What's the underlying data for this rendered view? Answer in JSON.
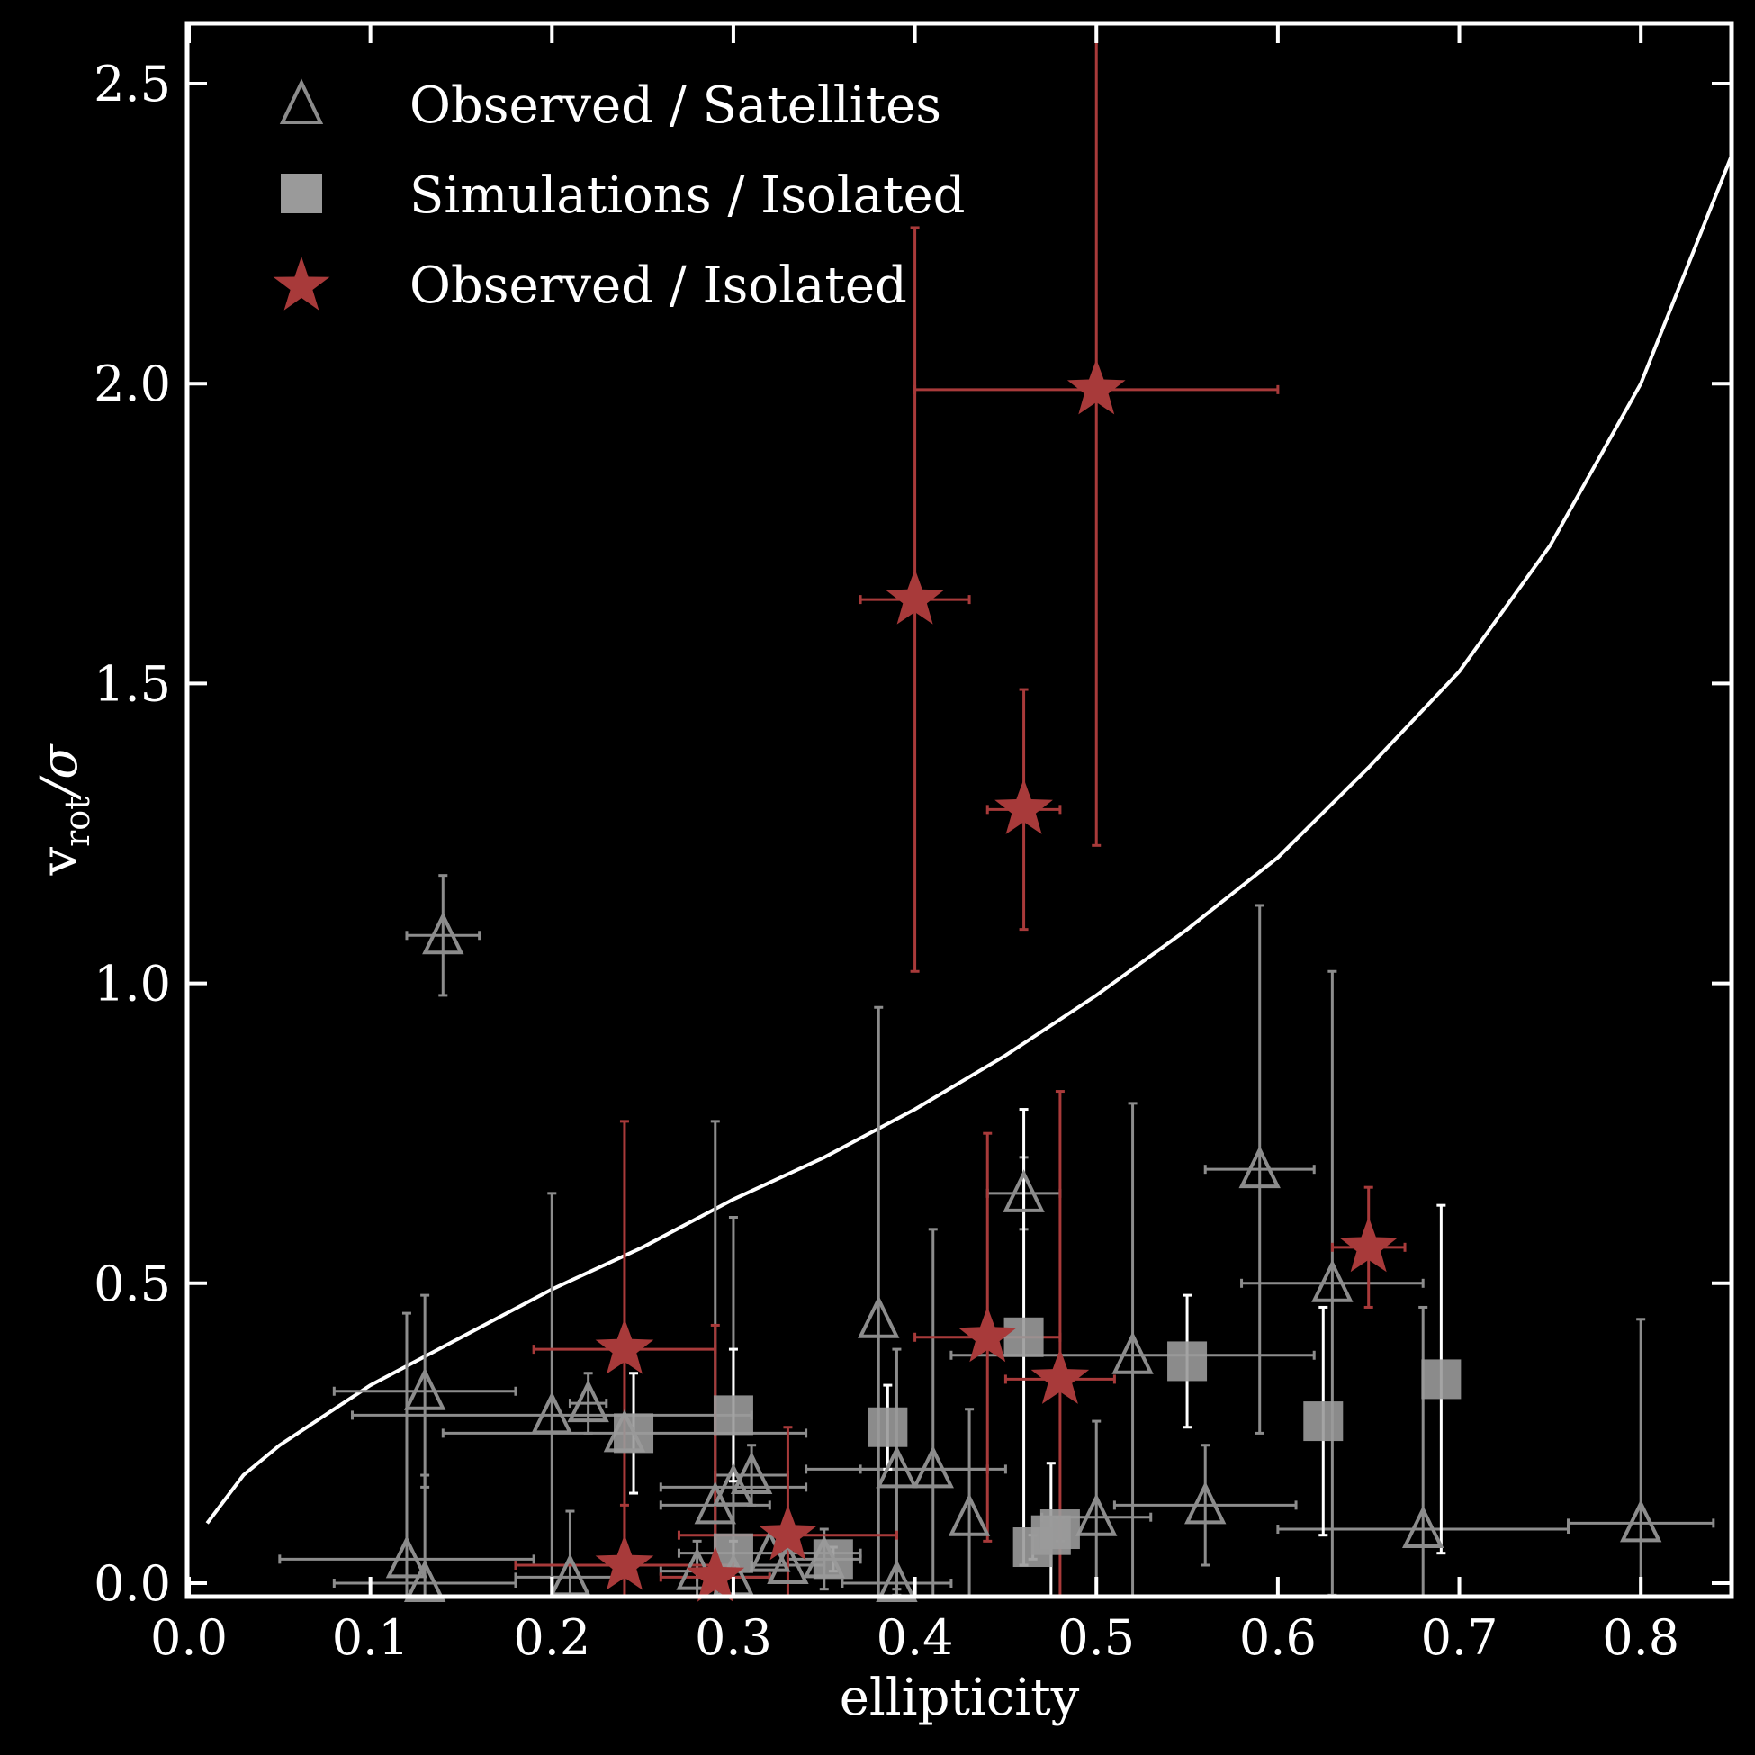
{
  "chart_data": {
    "type": "scatter",
    "xlabel": "ellipticity",
    "ylabel": "v_rot/σ",
    "ylabel_main": "v",
    "ylabel_sub": "rot",
    "ylabel_tail": "/σ",
    "xlim": [
      0.0,
      0.85
    ],
    "ylim": [
      -0.03,
      2.6
    ],
    "xticks": [
      "0.0",
      "0.1",
      "0.2",
      "0.3",
      "0.4",
      "0.5",
      "0.6",
      "0.7",
      "0.8"
    ],
    "yticks": [
      "0.0",
      "0.5",
      "1.0",
      "1.5",
      "2.0",
      "2.5"
    ],
    "grid": false,
    "legend_position": "top-left",
    "colors": {
      "background": "#000000",
      "axes": "#ffffff",
      "satellites": "#8c8c8c",
      "simulations": "#9a9a9a",
      "isolated": "#a83a3a",
      "curve": "#ffffff"
    },
    "legend": [
      {
        "label": "Observed / Satellites",
        "marker": "triangle"
      },
      {
        "label": "Simulations / Isolated",
        "marker": "square"
      },
      {
        "label": "Observed / Isolated",
        "marker": "star"
      }
    ],
    "curve": {
      "name": "",
      "x": [
        0.01,
        0.03,
        0.05,
        0.08,
        0.1,
        0.15,
        0.2,
        0.25,
        0.3,
        0.35,
        0.4,
        0.45,
        0.5,
        0.55,
        0.6,
        0.65,
        0.7,
        0.75,
        0.8,
        0.85
      ],
      "y": [
        0.1,
        0.18,
        0.23,
        0.29,
        0.33,
        0.41,
        0.49,
        0.56,
        0.64,
        0.71,
        0.79,
        0.88,
        0.98,
        1.09,
        1.21,
        1.36,
        1.52,
        1.73,
        2.0,
        2.38
      ]
    },
    "series": [
      {
        "name": "Observed / Satellites",
        "marker": "triangle",
        "points": [
          {
            "x": 0.14,
            "y": 1.08,
            "xerr": 0.02,
            "yerr": 0.1
          },
          {
            "x": 0.12,
            "y": 0.04,
            "xerr": 0.07,
            "yerr": 0.41
          },
          {
            "x": 0.13,
            "y": 0.0,
            "xerr": 0.05,
            "yerr": 0.18
          },
          {
            "x": 0.13,
            "y": 0.32,
            "xerr": 0.05,
            "yerr": 0.16
          },
          {
            "x": 0.2,
            "y": 0.28,
            "xerr": 0.11,
            "yerr": 0.37
          },
          {
            "x": 0.21,
            "y": 0.01,
            "xerr": 0.03,
            "yerr": 0.11
          },
          {
            "x": 0.22,
            "y": 0.3,
            "xerr": 0.01,
            "yerr": 0.05
          },
          {
            "x": 0.24,
            "y": 0.25,
            "xerr": 0.1,
            "yerr": 0.0
          },
          {
            "x": 0.28,
            "y": 0.02,
            "xerr": 0.02,
            "yerr": 0.05
          },
          {
            "x": 0.29,
            "y": 0.13,
            "xerr": 0.03,
            "yerr": 0.64
          },
          {
            "x": 0.3,
            "y": 0.16,
            "xerr": 0.04,
            "yerr": 0.45
          },
          {
            "x": 0.3,
            "y": 0.01,
            "xerr": 0.02,
            "yerr": 0.0
          },
          {
            "x": 0.31,
            "y": 0.18,
            "xerr": 0.02,
            "yerr": 0.05
          },
          {
            "x": 0.32,
            "y": 0.05,
            "xerr": 0.05,
            "yerr": 0.0
          },
          {
            "x": 0.33,
            "y": 0.03,
            "xerr": 0.02,
            "yerr": 0.0
          },
          {
            "x": 0.35,
            "y": 0.04,
            "xerr": 0.02,
            "yerr": 0.05
          },
          {
            "x": 0.38,
            "y": 0.44,
            "xerr": 0.0,
            "yerr": 0.52
          },
          {
            "x": 0.39,
            "y": 0.19,
            "xerr": 0.05,
            "yerr": 0.2
          },
          {
            "x": 0.39,
            "y": 0.0,
            "xerr": 0.03,
            "yerr": 0.02
          },
          {
            "x": 0.41,
            "y": 0.19,
            "xerr": 0.04,
            "yerr": 0.4
          },
          {
            "x": 0.43,
            "y": 0.11,
            "xerr": 0.0,
            "yerr": 0.18
          },
          {
            "x": 0.46,
            "y": 0.65,
            "xerr": 0.02,
            "yerr": 0.06
          },
          {
            "x": 0.5,
            "y": 0.11,
            "xerr": 0.03,
            "yerr": 0.16
          },
          {
            "x": 0.52,
            "y": 0.38,
            "xerr": 0.1,
            "yerr": 0.42
          },
          {
            "x": 0.56,
            "y": 0.13,
            "xerr": 0.05,
            "yerr": 0.1
          },
          {
            "x": 0.59,
            "y": 0.69,
            "xerr": 0.03,
            "yerr": 0.44
          },
          {
            "x": 0.63,
            "y": 0.5,
            "xerr": 0.05,
            "yerr": 0.52
          },
          {
            "x": 0.68,
            "y": 0.09,
            "xerr": 0.08,
            "yerr": 0.37
          },
          {
            "x": 0.8,
            "y": 0.1,
            "xerr": 0.04,
            "yerr": 0.34
          }
        ]
      },
      {
        "name": "Simulations / Isolated",
        "marker": "square",
        "points": [
          {
            "x": 0.245,
            "y": 0.25,
            "xerr": 0.0,
            "yerr": 0.1
          },
          {
            "x": 0.3,
            "y": 0.28,
            "xerr": 0.0,
            "yerr": 0.11
          },
          {
            "x": 0.3,
            "y": 0.05,
            "xerr": 0.0,
            "yerr": 0.02
          },
          {
            "x": 0.355,
            "y": 0.04,
            "xerr": 0.0,
            "yerr": 0.02
          },
          {
            "x": 0.385,
            "y": 0.26,
            "xerr": 0.0,
            "yerr": 0.07
          },
          {
            "x": 0.46,
            "y": 0.41,
            "xerr": 0.0,
            "yerr": 0.38
          },
          {
            "x": 0.465,
            "y": 0.06,
            "xerr": 0.0,
            "yerr": 0.02
          },
          {
            "x": 0.475,
            "y": 0.08,
            "xerr": 0.0,
            "yerr": 0.12
          },
          {
            "x": 0.48,
            "y": 0.09,
            "xerr": 0.0,
            "yerr": 0.02
          },
          {
            "x": 0.55,
            "y": 0.37,
            "xerr": 0.0,
            "yerr": 0.11
          },
          {
            "x": 0.625,
            "y": 0.27,
            "xerr": 0.0,
            "yerr": 0.19
          },
          {
            "x": 0.69,
            "y": 0.34,
            "xerr": 0.0,
            "yerr": 0.29
          }
        ]
      },
      {
        "name": "Observed / Isolated",
        "marker": "star",
        "points": [
          {
            "x": 0.4,
            "y": 1.64,
            "xerr": 0.03,
            "yerr": 0.62
          },
          {
            "x": 0.5,
            "y": 1.99,
            "xerr": 0.1,
            "yerr": 0.76
          },
          {
            "x": 0.46,
            "y": 1.29,
            "xerr": 0.02,
            "yerr": 0.2
          },
          {
            "x": 0.24,
            "y": 0.39,
            "xerr": 0.05,
            "yerr": 0.38
          },
          {
            "x": 0.24,
            "y": 0.03,
            "xerr": 0.06,
            "yerr": 0.1
          },
          {
            "x": 0.29,
            "y": 0.01,
            "xerr": 0.03,
            "yerr": 0.42
          },
          {
            "x": 0.33,
            "y": 0.08,
            "xerr": 0.06,
            "yerr": 0.18
          },
          {
            "x": 0.44,
            "y": 0.41,
            "xerr": 0.04,
            "yerr": 0.34
          },
          {
            "x": 0.48,
            "y": 0.34,
            "xerr": 0.03,
            "yerr": 0.48
          },
          {
            "x": 0.65,
            "y": 0.56,
            "xerr": 0.02,
            "yerr": 0.1
          }
        ]
      }
    ]
  }
}
